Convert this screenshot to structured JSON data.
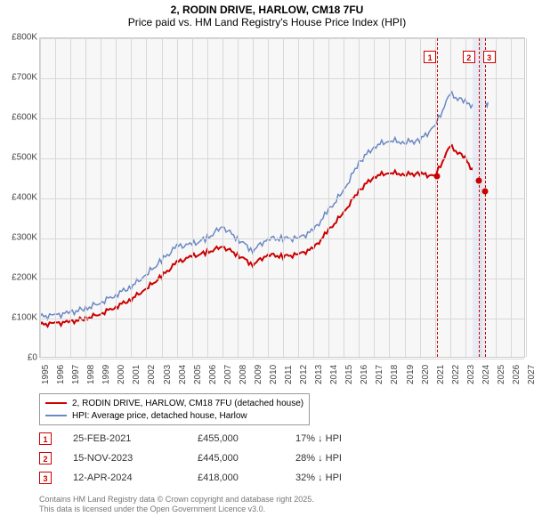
{
  "title": {
    "line1": "2, RODIN DRIVE, HARLOW, CM18 7FU",
    "line2": "Price paid vs. HM Land Registry's House Price Index (HPI)"
  },
  "chart": {
    "type": "line",
    "background_color": "#f7f7f7",
    "grid_color": "#d8d8d8",
    "border_color": "#cccccc",
    "xlim": [
      1995,
      2027
    ],
    "ylim": [
      0,
      800000
    ],
    "y_ticks": [
      0,
      100000,
      200000,
      300000,
      400000,
      500000,
      600000,
      700000,
      800000
    ],
    "y_tick_labels": [
      "£0",
      "£100K",
      "£200K",
      "£300K",
      "£400K",
      "£500K",
      "£600K",
      "£700K",
      "£800K"
    ],
    "x_ticks": [
      1995,
      1996,
      1997,
      1998,
      1999,
      2000,
      2001,
      2002,
      2003,
      2004,
      2005,
      2006,
      2007,
      2008,
      2009,
      2010,
      2011,
      2012,
      2013,
      2014,
      2015,
      2016,
      2017,
      2018,
      2019,
      2020,
      2021,
      2022,
      2023,
      2024,
      2025,
      2026,
      2027
    ],
    "highlight_band": {
      "x_start": 2023.5,
      "x_end": 2024.3,
      "color": "#e6ebf5"
    },
    "series": [
      {
        "name": "hpi",
        "color": "#6a88c4",
        "width": 1.5,
        "points": [
          [
            1995,
            105000
          ],
          [
            1996,
            108000
          ],
          [
            1997,
            115000
          ],
          [
            1998,
            125000
          ],
          [
            1999,
            140000
          ],
          [
            2000,
            160000
          ],
          [
            2001,
            180000
          ],
          [
            2002,
            210000
          ],
          [
            2003,
            245000
          ],
          [
            2004,
            280000
          ],
          [
            2005,
            285000
          ],
          [
            2006,
            300000
          ],
          [
            2007,
            330000
          ],
          [
            2008,
            300000
          ],
          [
            2009,
            270000
          ],
          [
            2010,
            300000
          ],
          [
            2011,
            300000
          ],
          [
            2012,
            300000
          ],
          [
            2013,
            320000
          ],
          [
            2014,
            370000
          ],
          [
            2015,
            420000
          ],
          [
            2016,
            490000
          ],
          [
            2017,
            530000
          ],
          [
            2018,
            545000
          ],
          [
            2019,
            540000
          ],
          [
            2020,
            545000
          ],
          [
            2021,
            580000
          ],
          [
            2022,
            660000
          ],
          [
            2023,
            640000
          ],
          [
            2024,
            625000
          ],
          [
            2024.5,
            640000
          ]
        ]
      },
      {
        "name": "price_paid",
        "color": "#cc0000",
        "width": 2,
        "points": [
          [
            1995,
            85000
          ],
          [
            1996,
            88000
          ],
          [
            1997,
            92000
          ],
          [
            1998,
            100000
          ],
          [
            1999,
            112000
          ],
          [
            2000,
            130000
          ],
          [
            2001,
            148000
          ],
          [
            2002,
            175000
          ],
          [
            2003,
            205000
          ],
          [
            2004,
            240000
          ],
          [
            2005,
            255000
          ],
          [
            2006,
            265000
          ],
          [
            2007,
            280000
          ],
          [
            2008,
            260000
          ],
          [
            2009,
            235000
          ],
          [
            2010,
            260000
          ],
          [
            2011,
            255000
          ],
          [
            2012,
            260000
          ],
          [
            2013,
            275000
          ],
          [
            2014,
            320000
          ],
          [
            2015,
            365000
          ],
          [
            2016,
            420000
          ],
          [
            2017,
            455000
          ],
          [
            2018,
            465000
          ],
          [
            2019,
            460000
          ],
          [
            2020,
            462000
          ],
          [
            2021,
            455000
          ],
          [
            2022,
            530000
          ],
          [
            2023,
            500000
          ],
          [
            2023.9,
            445000
          ],
          [
            2024.3,
            418000
          ]
        ]
      }
    ],
    "sale_markers": [
      {
        "n": "1",
        "x": 2021.15,
        "y": 455000
      },
      {
        "n": "2",
        "x": 2023.88,
        "y": 445000
      },
      {
        "n": "3",
        "x": 2024.28,
        "y": 418000
      }
    ]
  },
  "legend": {
    "items": [
      {
        "color": "#cc0000",
        "label": "2, RODIN DRIVE, HARLOW, CM18 7FU (detached house)"
      },
      {
        "color": "#6a88c4",
        "label": "HPI: Average price, detached house, Harlow"
      }
    ]
  },
  "sales": [
    {
      "n": "1",
      "date": "25-FEB-2021",
      "price": "£455,000",
      "diff": "17% ↓ HPI"
    },
    {
      "n": "2",
      "date": "15-NOV-2023",
      "price": "£445,000",
      "diff": "28% ↓ HPI"
    },
    {
      "n": "3",
      "date": "12-APR-2024",
      "price": "£418,000",
      "diff": "32% ↓ HPI"
    }
  ],
  "attribution": {
    "line1": "Contains HM Land Registry data © Crown copyright and database right 2025.",
    "line2": "This data is licensed under the Open Government Licence v3.0."
  }
}
